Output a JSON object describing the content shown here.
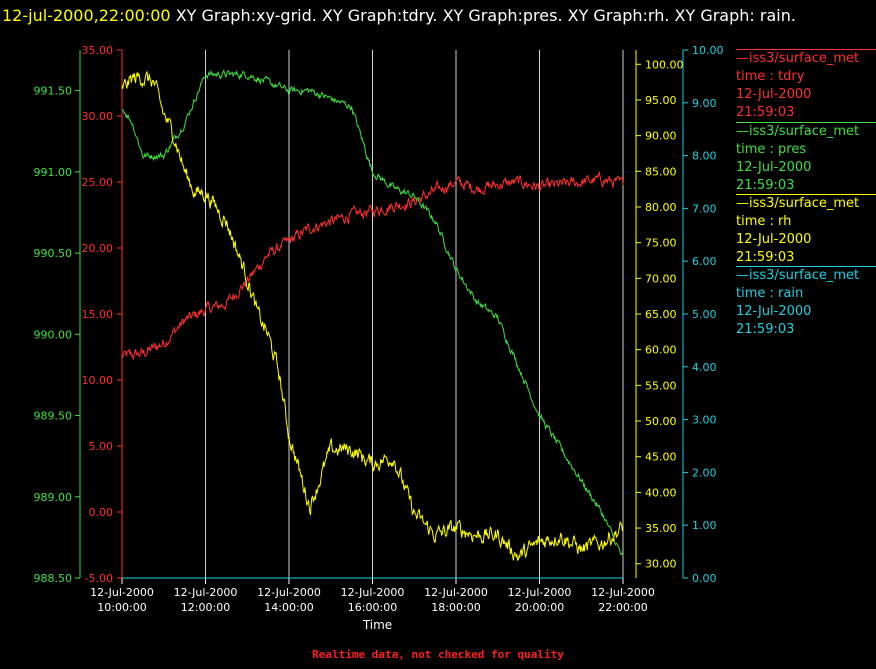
{
  "header": {
    "timestamp": "12-jul-2000,22:00:00",
    "titles": "XY Graph:xy-grid.  XY Graph:tdry.  XY Graph:pres.  XY Graph:rh.  XY Graph: rain."
  },
  "colors": {
    "tdry": "#ff3030",
    "pres": "#40e040",
    "rh": "#ffff00",
    "rain": "#20d0e0",
    "grid": "#d0d0d0"
  },
  "legend": [
    {
      "key": "tdry",
      "source": "—iss3/surface_met",
      "var": "time : tdry",
      "date": "12-Jul-2000",
      "time": "21:59:03"
    },
    {
      "key": "pres",
      "source": "—iss3/surface_met",
      "var": "time : pres",
      "date": "12-Jul-2000",
      "time": "21:59:03"
    },
    {
      "key": "rh",
      "source": "—iss3/surface_met",
      "var": "time : rh",
      "date": "12-Jul-2000",
      "time": "21:59:03"
    },
    {
      "key": "rain",
      "source": "—iss3/surface_met",
      "var": "time : rain",
      "date": "12-Jul-2000",
      "time": "21:59:03"
    }
  ],
  "footer": "Realtime data, not checked for quality",
  "chart_data": {
    "type": "line",
    "xlabel": "Time",
    "x_range": [
      "2000-07-12 10:00",
      "2000-07-12 22:00"
    ],
    "x_ticks": [
      {
        "date": "12-Jul-2000",
        "time": "10:00:00"
      },
      {
        "date": "12-Jul-2000",
        "time": "12:00:00"
      },
      {
        "date": "12-Jul-2000",
        "time": "14:00:00"
      },
      {
        "date": "12-Jul-2000",
        "time": "16:00:00"
      },
      {
        "date": "12-Jul-2000",
        "time": "18:00:00"
      },
      {
        "date": "12-Jul-2000",
        "time": "20:00:00"
      },
      {
        "date": "12-Jul-2000",
        "time": "22:00:00"
      }
    ],
    "grid": "vertical",
    "axes": {
      "pres": {
        "side": "left-outer",
        "range": [
          988.5,
          991.75
        ],
        "ticks": [
          "988.50",
          "989.00",
          "989.50",
          "990.00",
          "990.50",
          "991.00",
          "991.50"
        ]
      },
      "tdry": {
        "side": "left-inner",
        "range": [
          -5,
          35
        ],
        "ticks": [
          "-5.00",
          "0.00",
          "5.00",
          "10.00",
          "15.00",
          "20.00",
          "25.00",
          "30.00",
          "35.00"
        ]
      },
      "rh": {
        "side": "right-inner",
        "range": [
          28,
          102
        ],
        "ticks": [
          "30.00",
          "35.00",
          "40.00",
          "45.00",
          "50.00",
          "55.00",
          "60.00",
          "65.00",
          "70.00",
          "75.00",
          "80.00",
          "85.00",
          "90.00",
          "95.00",
          "100.00"
        ]
      },
      "rain": {
        "side": "right-outer",
        "range": [
          0,
          10.0
        ],
        "ticks": [
          "0.00",
          "1.00",
          "2.00",
          "3.00",
          "4.00",
          "5.00",
          "6.00",
          "7.00",
          "8.00",
          "9.00",
          "10.00"
        ]
      }
    },
    "series": [
      {
        "key": "tdry",
        "axis": "tdry",
        "x": [
          10.0,
          10.5,
          11.0,
          11.5,
          12.0,
          12.5,
          13.0,
          13.5,
          14.0,
          14.5,
          15.0,
          15.5,
          16.0,
          16.5,
          17.0,
          17.5,
          18.0,
          18.5,
          19.0,
          19.5,
          20.0,
          20.5,
          21.0,
          21.5,
          22.0
        ],
        "y": [
          11.8,
          12.0,
          12.8,
          14.5,
          15.3,
          15.8,
          17.5,
          19.5,
          20.5,
          21.5,
          22.0,
          22.5,
          22.8,
          23.2,
          23.5,
          24.3,
          25.0,
          24.5,
          24.8,
          25.0,
          24.6,
          24.8,
          25.0,
          25.2,
          24.8
        ]
      },
      {
        "key": "pres",
        "axis": "pres",
        "x": [
          10.0,
          10.25,
          10.5,
          11.0,
          11.5,
          12.0,
          12.5,
          13.0,
          13.5,
          14.0,
          14.5,
          15.0,
          15.5,
          16.0,
          16.5,
          17.0,
          17.5,
          18.0,
          18.5,
          19.0,
          19.5,
          20.0,
          20.5,
          21.0,
          21.5,
          22.0
        ],
        "y": [
          991.4,
          991.3,
          991.1,
          991.1,
          991.3,
          991.6,
          991.6,
          991.6,
          991.55,
          991.5,
          991.5,
          991.45,
          991.4,
          991.0,
          990.9,
          990.85,
          990.7,
          990.4,
          990.2,
          990.1,
          989.8,
          989.5,
          989.3,
          989.1,
          988.9,
          988.62
        ]
      },
      {
        "key": "rh",
        "axis": "rh",
        "x": [
          10.0,
          10.25,
          10.5,
          10.75,
          11.0,
          11.25,
          11.5,
          11.75,
          12.0,
          12.5,
          13.0,
          13.25,
          13.5,
          13.75,
          14.0,
          14.5,
          15.0,
          15.5,
          16.0,
          16.5,
          17.0,
          17.5,
          18.0,
          18.5,
          19.0,
          19.5,
          20.0,
          20.5,
          21.0,
          21.5,
          22.0
        ],
        "y": [
          96.5,
          98,
          98.2,
          97.5,
          93,
          90,
          85,
          82,
          82,
          78,
          70,
          65,
          62,
          57,
          48,
          38,
          46,
          46,
          44,
          45,
          37,
          34,
          35,
          34,
          34,
          31,
          33,
          34,
          32,
          33,
          35
        ]
      },
      {
        "key": "rain",
        "axis": "rain",
        "x": [
          10.0,
          22.0
        ],
        "y": [
          0.0,
          0.0
        ]
      }
    ]
  }
}
